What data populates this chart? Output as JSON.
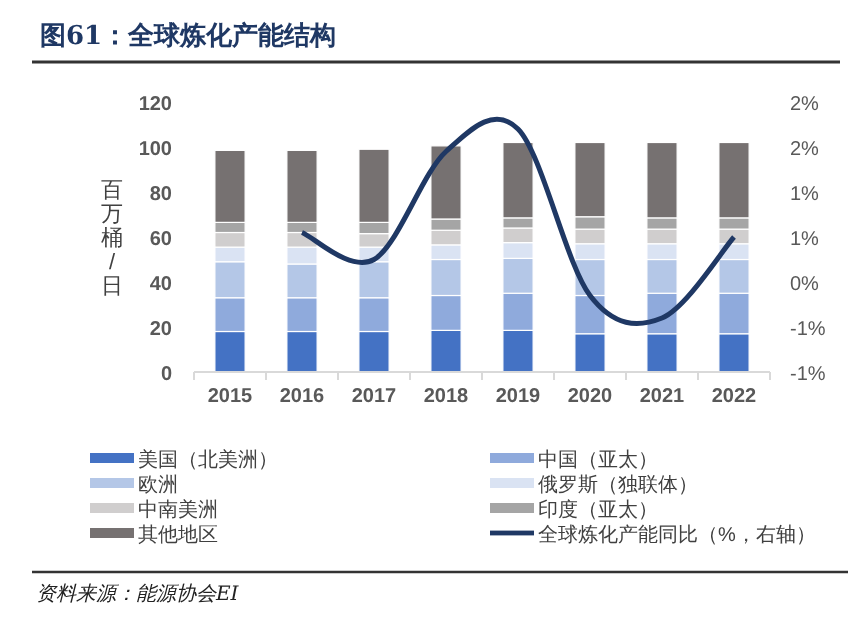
{
  "chart_data": {
    "type": "bar",
    "stacked": true,
    "title": "图61：全球炼化产能结构",
    "ylabel": "百万桶/日",
    "categories": [
      "2015",
      "2016",
      "2017",
      "2018",
      "2019",
      "2020",
      "2021",
      "2022"
    ],
    "series": [
      {
        "name": "美国（北美洲）",
        "color": "#4472c4",
        "values": [
          18,
          18,
          18,
          18.5,
          18.5,
          17,
          17,
          17
        ]
      },
      {
        "name": "中国（亚太）",
        "color": "#8faadc",
        "values": [
          15,
          15,
          15,
          15.5,
          16.5,
          17,
          18,
          18
        ]
      },
      {
        "name": "欧洲",
        "color": "#b4c7e7",
        "values": [
          16,
          15,
          16,
          16,
          15.5,
          16,
          15,
          15
        ]
      },
      {
        "name": "俄罗斯（独联体）",
        "color": "#dae3f3",
        "values": [
          6.5,
          7.5,
          6.5,
          6.5,
          7,
          7,
          7,
          7
        ]
      },
      {
        "name": "中南美洲",
        "color": "#d0cece",
        "values": [
          6.5,
          6.5,
          6,
          6.5,
          6.5,
          6.5,
          6.5,
          6.5
        ]
      },
      {
        "name": "印度（亚太）",
        "color": "#a5a5a5",
        "values": [
          4.5,
          4.5,
          5,
          5,
          4.5,
          5.5,
          5,
          5
        ]
      },
      {
        "name": "其他地区",
        "color": "#767171",
        "values": [
          32,
          32,
          32.5,
          32.5,
          33.5,
          33,
          33.5,
          33.5
        ]
      },
      {
        "name": "全球炼化产能同比（%，右轴）",
        "type": "line",
        "axis": "y2",
        "color": "#1f3864",
        "values": [
          null,
          0.55,
          0.25,
          1.45,
          1.7,
          -0.15,
          -0.4,
          0.5
        ]
      }
    ],
    "ylim": [
      0,
      120
    ],
    "yticks": [
      0,
      20,
      40,
      60,
      80,
      100,
      120
    ],
    "y2lim": [
      -1,
      2
    ],
    "y2ticks": [
      {
        "value": -1,
        "label": "-1%"
      },
      {
        "value": -0.5,
        "label": "-1%"
      },
      {
        "value": 0,
        "label": "0%"
      },
      {
        "value": 0.5,
        "label": "1%"
      },
      {
        "value": 1,
        "label": "1%"
      },
      {
        "value": 1.5,
        "label": "2%"
      },
      {
        "value": 2,
        "label": "2%"
      }
    ],
    "grid": false,
    "legend": "bottom",
    "marker": "none",
    "line_style": "solid",
    "annotations": [
      "资料来源：能源协会EI"
    ]
  }
}
